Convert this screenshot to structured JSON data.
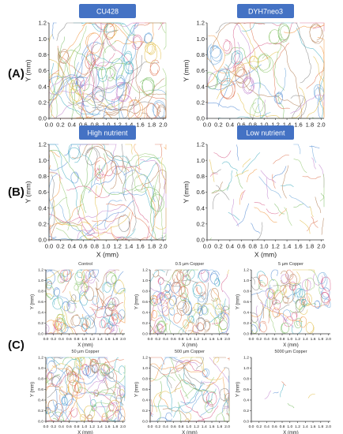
{
  "colors": {
    "banner": "#4472C4",
    "banner_text": "#ffffff",
    "axis": "#333333",
    "palette": [
      "#5b8fd6",
      "#e07b5a",
      "#7fbf6a",
      "#c48bd1",
      "#e3c14f",
      "#4fb3c4",
      "#d9668f",
      "#8a8a8a",
      "#9acd7a",
      "#f29e4c",
      "#6fa8dc",
      "#b5835a"
    ]
  },
  "row_labels": [
    "(A)",
    "(B)",
    "(C)"
  ],
  "chart_data": [
    {
      "type": "scatter",
      "title": "CU428",
      "xlabel": "X (mm)",
      "ylabel": "Y (mm)",
      "xlim": [
        0,
        2.05
      ],
      "ylim": [
        0,
        1.2
      ],
      "xticks": [
        "0.0",
        "0.2",
        "0.4",
        "0.6",
        "0.8",
        "1.0",
        "1.2",
        "1.4",
        "1.6",
        "1.8",
        "2.0"
      ],
      "yticks": [
        "0.0",
        "0.2",
        "0.4",
        "0.6",
        "0.8",
        "1.0",
        "1.2"
      ],
      "tracks": 110,
      "track_len": 14,
      "loops": 0.25,
      "seed": 11,
      "title_style": "banner"
    },
    {
      "type": "scatter",
      "title": "DYH7neo3",
      "xlabel": "X (mm)",
      "ylabel": "Y (mm)",
      "xlim": [
        0,
        2.05
      ],
      "ylim": [
        0,
        1.2
      ],
      "xticks": [
        "0.0",
        "0.2",
        "0.4",
        "0.6",
        "0.8",
        "1.0",
        "1.2",
        "1.4",
        "1.6",
        "1.8",
        "2.0"
      ],
      "yticks": [
        "0.0",
        "0.2",
        "0.4",
        "0.6",
        "0.8",
        "1.0",
        "1.2"
      ],
      "tracks": 60,
      "track_len": 16,
      "loops": 0.35,
      "seed": 23,
      "title_style": "banner"
    },
    {
      "type": "scatter",
      "title": "High nutrient",
      "xlabel": "X (mm)",
      "ylabel": "Y (mm)",
      "xlim": [
        0,
        2.05
      ],
      "ylim": [
        0,
        1.2
      ],
      "xticks": [
        "0.0",
        "0.2",
        "0.4",
        "0.6",
        "0.8",
        "1.0",
        "1.2",
        "1.4",
        "1.6",
        "1.8",
        "2.0"
      ],
      "yticks": [
        "0.0",
        "0.2",
        "0.4",
        "0.6",
        "0.8",
        "1.0",
        "1.2"
      ],
      "tracks": 90,
      "track_len": 12,
      "loops": 0.05,
      "seed": 37,
      "title_style": "banner"
    },
    {
      "type": "scatter",
      "title": "Low nutrient",
      "xlabel": "X (mm)",
      "ylabel": "Y (mm)",
      "xlim": [
        0,
        2.05
      ],
      "ylim": [
        0,
        1.2
      ],
      "xticks": [
        "0.0",
        "0.2",
        "0.4",
        "0.6",
        "0.8",
        "1.0",
        "1.2",
        "1.4",
        "1.6",
        "1.8",
        "2.0"
      ],
      "yticks": [
        "0.0",
        "0.2",
        "0.4",
        "0.6",
        "0.8",
        "1.0",
        "1.2"
      ],
      "tracks": 55,
      "track_len": 4,
      "loops": 0.0,
      "seed": 41,
      "title_style": "banner"
    },
    {
      "type": "scatter",
      "title": "Control",
      "xlabel": "X (mm)",
      "ylabel": "Y (mm)",
      "xlim": [
        0,
        2.05
      ],
      "ylim": [
        0,
        1.2
      ],
      "xticks": [
        "0.0",
        "0.2",
        "0.4",
        "0.6",
        "0.8",
        "1.0",
        "1.2",
        "1.4",
        "1.6",
        "1.8",
        "2.0"
      ],
      "yticks": [
        "0.0",
        "0.2",
        "0.4",
        "0.6",
        "0.8",
        "1.0",
        "1.2"
      ],
      "tracks": 90,
      "track_len": 10,
      "loops": 0.6,
      "seed": 53,
      "title_style": "plain"
    },
    {
      "type": "scatter",
      "title": "0.5 µm Copper",
      "xlabel": "X (mm)",
      "ylabel": "Y (mm)",
      "xlim": [
        0,
        2.05
      ],
      "ylim": [
        0,
        1.2
      ],
      "xticks": [
        "0.0",
        "0.2",
        "0.4",
        "0.6",
        "0.8",
        "1.0",
        "1.2",
        "1.4",
        "1.6",
        "1.8",
        "2.0"
      ],
      "yticks": [
        "0.0",
        "0.2",
        "0.4",
        "0.6",
        "0.8",
        "1.0",
        "1.2"
      ],
      "tracks": 100,
      "track_len": 10,
      "loops": 0.7,
      "seed": 61,
      "title_style": "plain"
    },
    {
      "type": "scatter",
      "title": "5 µm Copper",
      "xlabel": "X (mm)",
      "ylabel": "Y (mm)",
      "xlim": [
        0,
        2.05
      ],
      "ylim": [
        0,
        1.2
      ],
      "xticks": [
        "0.0",
        "0.2",
        "0.4",
        "0.6",
        "0.8",
        "1.0",
        "1.2",
        "1.4",
        "1.6",
        "1.8",
        "2.0"
      ],
      "yticks": [
        "0.0",
        "0.2",
        "0.4",
        "0.6",
        "0.8",
        "1.0",
        "1.2"
      ],
      "tracks": 70,
      "track_len": 9,
      "loops": 0.7,
      "seed": 71,
      "title_style": "plain"
    },
    {
      "type": "scatter",
      "title": "50 µm Copper",
      "xlabel": "X (mm)",
      "ylabel": "Y (mm)",
      "xlim": [
        0,
        2.05
      ],
      "ylim": [
        0,
        1.2
      ],
      "xticks": [
        "0.0",
        "0.2",
        "0.4",
        "0.6",
        "0.8",
        "1.0",
        "1.2",
        "1.4",
        "1.6",
        "1.8",
        "2.0"
      ],
      "yticks": [
        "0.0",
        "0.2",
        "0.4",
        "0.6",
        "0.8",
        "1.0",
        "1.2"
      ],
      "tracks": 110,
      "track_len": 11,
      "loops": 0.4,
      "seed": 83,
      "title_style": "plain"
    },
    {
      "type": "scatter",
      "title": "500 µm Copper",
      "xlabel": "X (mm)",
      "ylabel": "Y (mm)",
      "xlim": [
        0,
        2.05
      ],
      "ylim": [
        0,
        1.2
      ],
      "xticks": [
        "0.0",
        "0.2",
        "0.4",
        "0.6",
        "0.8",
        "1.0",
        "1.2",
        "1.4",
        "1.6",
        "1.8",
        "2.0"
      ],
      "yticks": [
        "0.0",
        "0.2",
        "0.4",
        "0.6",
        "0.8",
        "1.0",
        "1.2"
      ],
      "tracks": 70,
      "track_len": 10,
      "loops": 0.1,
      "seed": 97,
      "title_style": "plain"
    },
    {
      "type": "scatter",
      "title": "5000 µm Copper",
      "xlabel": "X (mm)",
      "ylabel": "Y (mm)",
      "xlim": [
        0,
        2.05
      ],
      "ylim": [
        0,
        1.2
      ],
      "xticks": [
        "0.0",
        "0.2",
        "0.4",
        "0.6",
        "0.8",
        "1.0",
        "1.2",
        "1.4",
        "1.6",
        "1.8",
        "2.0"
      ],
      "yticks": [
        "0.0",
        "0.2",
        "0.4",
        "0.6",
        "0.8",
        "1.0",
        "1.2"
      ],
      "tracks": 6,
      "track_len": 3,
      "loops": 0.0,
      "seed": 101,
      "title_style": "plain"
    }
  ]
}
